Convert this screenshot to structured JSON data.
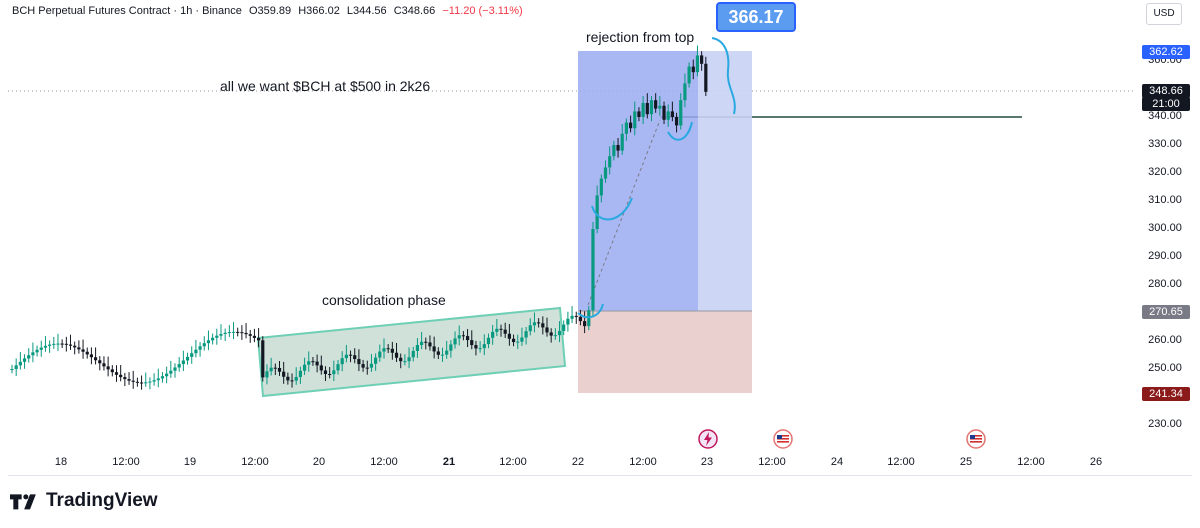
{
  "header": {
    "symbol": "BCH Perpetual Futures Contract · 1h · Binance",
    "open": "O359.89",
    "high": "H366.02",
    "low": "L344.56",
    "close": "C348.66",
    "change": "−11.20 (−3.11%)"
  },
  "currency": "USD",
  "price_axis": {
    "ticks": [
      "360.00",
      "340.00",
      "330.00",
      "320.00",
      "310.00",
      "300.00",
      "290.00",
      "280.00",
      "260.00",
      "250.00",
      "230.00"
    ],
    "badges": {
      "high_marker": "362.62",
      "last_price": "348.66",
      "countdown": "21:00",
      "entry": "270.65",
      "stop": "241.34"
    }
  },
  "time_axis": {
    "ticks": [
      "18",
      "12:00",
      "19",
      "12:00",
      "20",
      "12:00",
      "21",
      "12:00",
      "22",
      "12:00",
      "23",
      "12:00",
      "24",
      "12:00",
      "25",
      "12:00",
      "26"
    ]
  },
  "annotations": {
    "callout_price": "366.17",
    "rejection": "rejection from top",
    "target_note": "all we want $BCH at $500 in 2k26",
    "consolidation": "consolidation phase"
  },
  "colors": {
    "up": "#089981",
    "down": "#131722",
    "profit_zone": "#9aaaf0",
    "loss_zone": "#e8c8c8",
    "consolidation_box": "#a9c9bc",
    "support_line": "#1e4d3a",
    "stop_badge": "#8b1a1a",
    "entry_badge": "#787b86",
    "high_badge": "#2962ff"
  },
  "icons": {
    "logo": "tradingview-logo-icon",
    "event1": "lightning-icon",
    "event2": "us-flag-icon",
    "event3": "us-flag-icon"
  },
  "brand": "TradingView"
}
